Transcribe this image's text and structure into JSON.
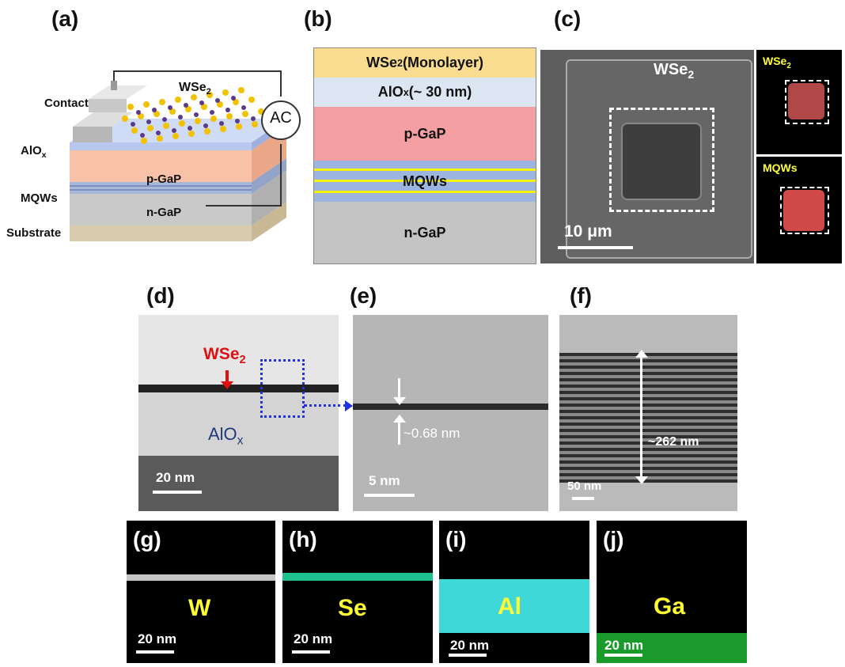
{
  "panels": {
    "a": "(a)",
    "b": "(b)",
    "c": "(c)",
    "d": "(d)",
    "e": "(e)",
    "f": "(f)",
    "g": "(g)",
    "h": "(h)",
    "i": "(i)",
    "j": "(j)"
  },
  "panel_a": {
    "wse2": "WSe",
    "wse2_sub": "2",
    "contact": "Contact",
    "ac": "AC",
    "alox": "AlO",
    "alox_sub": "x",
    "pgap": "p-GaP",
    "mqws": "MQWs",
    "ngap": "n-GaP",
    "substrate": "Substrate"
  },
  "panel_b": {
    "wse2_pre": "WSe",
    "wse2_sub": "2",
    "wse2_post": " (Monolayer)",
    "alox_pre": "AlO",
    "alox_sub": "x",
    "alox_post": " (~ 30 nm)",
    "pgap": "p-GaP",
    "mqws": "MQWs",
    "ngap": "n-GaP"
  },
  "panel_c": {
    "wse2": "WSe",
    "wse2_sub": "2",
    "scale": "10 μm",
    "inset_top": "WSe",
    "inset_top_sub": "2",
    "inset_bottom": "MQWs"
  },
  "panel_d": {
    "wse2": "WSe",
    "wse2_sub": "2",
    "alox": "AlO",
    "alox_sub": "x",
    "scale": "20 nm"
  },
  "panel_e": {
    "thickness": "~0.68 nm",
    "scale": "5 nm"
  },
  "panel_f": {
    "thickness": "~262 nm",
    "scale": "50 nm"
  },
  "maps": [
    {
      "element": "W",
      "scale": "20 nm"
    },
    {
      "element": "Se",
      "scale": "20 nm"
    },
    {
      "element": "Al",
      "scale": "20 nm"
    },
    {
      "element": "Ga",
      "scale": "20 nm"
    }
  ],
  "colors": {
    "wse2_layer": "#f9dc90",
    "alox_layer": "#dce6f2",
    "pgap_layer": "#f4a0a2",
    "mqw_layer": "#9cb5e0",
    "mqw_line": "#f5f500",
    "ngap_layer": "#c4c4c4",
    "se_map": "#1ec090",
    "al_map": "#3fd8d8",
    "ga_map": "#1a9a2a",
    "map_text": "#ffff33",
    "arrow_red": "#e01010",
    "label_blue": "#1f3a7a",
    "box_blue": "#2233dd"
  }
}
